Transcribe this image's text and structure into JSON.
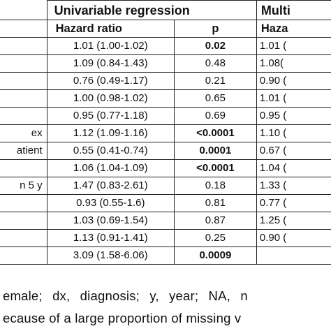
{
  "table": {
    "group_headers": {
      "univariable": "Univariable regression",
      "multivariable": "Multi"
    },
    "sub_headers": {
      "hazard_ratio": "Hazard ratio",
      "p": "p",
      "multi_hazard": "Haza"
    },
    "rows": [
      {
        "label": "",
        "hr": "1.01 (1.00-1.02)",
        "p": "0.02",
        "p_bold": true,
        "mhr": "1.01 ("
      },
      {
        "label": "",
        "hr": "1.09 (0.84-1.43)",
        "p": "0.48",
        "p_bold": false,
        "mhr": "1.08("
      },
      {
        "label": "",
        "hr": "0.76 (0.49-1.17)",
        "p": "0.21",
        "p_bold": false,
        "mhr": "0.90 ("
      },
      {
        "label": "",
        "hr": "1.00 (0.98-1.02)",
        "p": "0.65",
        "p_bold": false,
        "mhr": "1.01 ("
      },
      {
        "label": "",
        "hr": "0.95 (0.77-1.18)",
        "p": "0.69",
        "p_bold": false,
        "mhr": "0.95 ("
      },
      {
        "label": "ex",
        "hr": "1.12 (1.09-1.16)",
        "p": "<0.0001",
        "p_bold": true,
        "mhr": "1.10 ("
      },
      {
        "label": "atient",
        "hr": "0.55 (0.41-0.74)",
        "p": "0.0001",
        "p_bold": true,
        "mhr": "0.67 ("
      },
      {
        "label": "",
        "hr": "1.06 (1.04-1.09)",
        "p": "<0.0001",
        "p_bold": true,
        "mhr": "1.04 ("
      },
      {
        "label": "n 5 y",
        "hr": "1.47 (0.83-2.61)",
        "p": "0.18",
        "p_bold": false,
        "mhr": "1.33 ("
      },
      {
        "label": "",
        "hr": "0.93 (0.55-1.6)",
        "p": "0.81",
        "p_bold": false,
        "mhr": "0.77 ("
      },
      {
        "label": "",
        "hr": "1.03 (0.69-1.54)",
        "p": "0.87",
        "p_bold": false,
        "mhr": "1.25 ("
      },
      {
        "label": "",
        "hr": "1.13 (0.91-1.41)",
        "p": "0.25",
        "p_bold": false,
        "mhr": "0.90 ("
      },
      {
        "label": "",
        "hr": "3.09 (1.58-6.06)",
        "p": "0.0009",
        "p_bold": true,
        "mhr": ""
      }
    ]
  },
  "footnotes": {
    "line1": "emale; dx, diagnosis; y, year; NA, n",
    "line2": "ecause of a large proportion of missing v"
  }
}
